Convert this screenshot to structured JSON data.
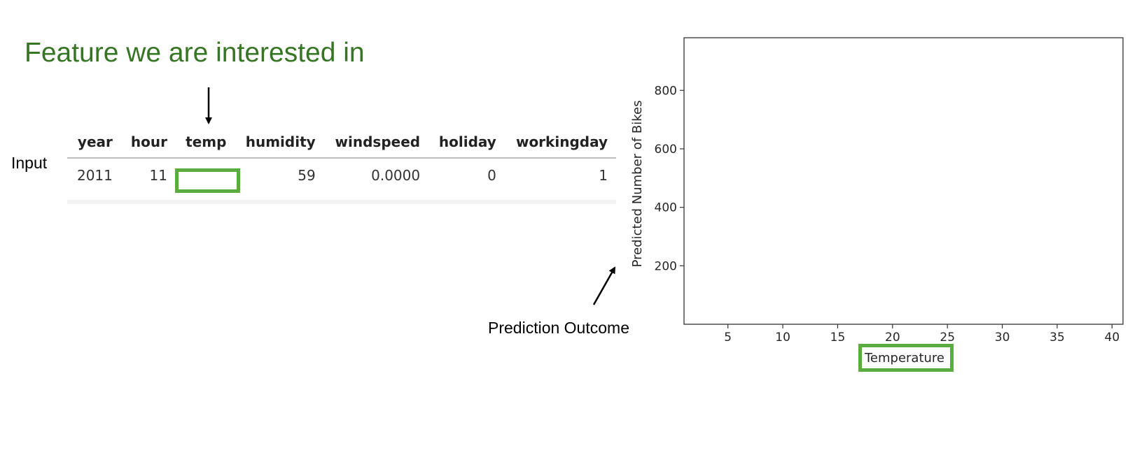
{
  "heading": "Feature we are interested in",
  "input_label": "Input",
  "outcome_label": "Prediction Outcome",
  "table": {
    "columns": [
      "year",
      "hour",
      "temp",
      "humidity",
      "windspeed",
      "holiday",
      "workingday"
    ],
    "row": [
      "2011",
      "11",
      "",
      "59",
      "0.0000",
      "0",
      "1"
    ]
  },
  "colors": {
    "heading": "#367524",
    "highlight": "#5aac41"
  },
  "chart_data": {
    "type": "line",
    "series": [],
    "xlabel": "Temperature",
    "ylabel": "Predicted Number of Bikes",
    "xticks": [
      5,
      10,
      15,
      20,
      25,
      30,
      35,
      40
    ],
    "yticks": [
      200,
      400,
      600,
      800
    ],
    "xlim": [
      1,
      41
    ],
    "ylim": [
      0,
      980
    ],
    "grid": false
  }
}
